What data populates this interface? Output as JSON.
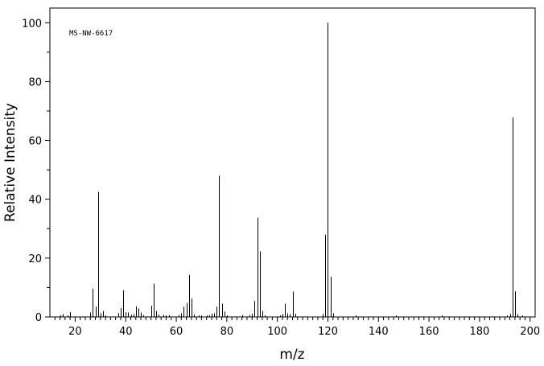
{
  "chart_data": {
    "type": "bar",
    "title": "",
    "annotation": "MS-NW-6617",
    "xlabel": "m/z",
    "ylabel": "Relative Intensity",
    "xlim": [
      10,
      202
    ],
    "ylim": [
      0,
      105
    ],
    "x_ticks": [
      20,
      40,
      60,
      80,
      100,
      120,
      140,
      160,
      180,
      200
    ],
    "y_ticks": [
      0,
      20,
      40,
      60,
      80,
      100
    ],
    "grid": false,
    "legend": "none",
    "bar_color": "#000000",
    "peaks": [
      {
        "x": 14,
        "y": 0.6
      },
      {
        "x": 15,
        "y": 1.0
      },
      {
        "x": 17,
        "y": 0.5
      },
      {
        "x": 18,
        "y": 1.6
      },
      {
        "x": 26,
        "y": 1.5
      },
      {
        "x": 27,
        "y": 9.6
      },
      {
        "x": 28,
        "y": 3.5
      },
      {
        "x": 29,
        "y": 42.5
      },
      {
        "x": 30,
        "y": 1.3
      },
      {
        "x": 31,
        "y": 2.0
      },
      {
        "x": 32,
        "y": 0.5
      },
      {
        "x": 37,
        "y": 1.3
      },
      {
        "x": 38,
        "y": 3.0
      },
      {
        "x": 39,
        "y": 9.1
      },
      {
        "x": 40,
        "y": 1.6
      },
      {
        "x": 41,
        "y": 1.5
      },
      {
        "x": 42,
        "y": 0.8
      },
      {
        "x": 43,
        "y": 1.0
      },
      {
        "x": 44,
        "y": 3.6
      },
      {
        "x": 45,
        "y": 2.9
      },
      {
        "x": 46,
        "y": 1.5
      },
      {
        "x": 47,
        "y": 0.6
      },
      {
        "x": 50,
        "y": 3.8
      },
      {
        "x": 51,
        "y": 11.3
      },
      {
        "x": 52,
        "y": 2.0
      },
      {
        "x": 53,
        "y": 0.8
      },
      {
        "x": 55,
        "y": 0.7
      },
      {
        "x": 56,
        "y": 0.5
      },
      {
        "x": 57,
        "y": 0.6
      },
      {
        "x": 61,
        "y": 0.6
      },
      {
        "x": 62,
        "y": 1.2
      },
      {
        "x": 63,
        "y": 3.5
      },
      {
        "x": 64,
        "y": 4.7
      },
      {
        "x": 65,
        "y": 14.3
      },
      {
        "x": 66,
        "y": 6.3
      },
      {
        "x": 67,
        "y": 0.8
      },
      {
        "x": 69,
        "y": 0.5
      },
      {
        "x": 70,
        "y": 0.5
      },
      {
        "x": 72,
        "y": 0.5
      },
      {
        "x": 73,
        "y": 0.6
      },
      {
        "x": 74,
        "y": 1.1
      },
      {
        "x": 75,
        "y": 1.2
      },
      {
        "x": 76,
        "y": 3.5
      },
      {
        "x": 77,
        "y": 48.0
      },
      {
        "x": 78,
        "y": 4.5
      },
      {
        "x": 79,
        "y": 1.8
      },
      {
        "x": 80,
        "y": 0.5
      },
      {
        "x": 86,
        "y": 0.6
      },
      {
        "x": 89,
        "y": 0.7
      },
      {
        "x": 90,
        "y": 1.1
      },
      {
        "x": 91,
        "y": 5.5
      },
      {
        "x": 92,
        "y": 33.7
      },
      {
        "x": 93,
        "y": 22.3
      },
      {
        "x": 94,
        "y": 2.0
      },
      {
        "x": 95,
        "y": 0.6
      },
      {
        "x": 101,
        "y": 0.5
      },
      {
        "x": 102,
        "y": 1.0
      },
      {
        "x": 103,
        "y": 4.5
      },
      {
        "x": 104,
        "y": 1.2
      },
      {
        "x": 105,
        "y": 1.0
      },
      {
        "x": 106,
        "y": 8.6
      },
      {
        "x": 107,
        "y": 1.1
      },
      {
        "x": 118,
        "y": 1.0
      },
      {
        "x": 119,
        "y": 28.0
      },
      {
        "x": 120,
        "y": 100.0
      },
      {
        "x": 121,
        "y": 13.7
      },
      {
        "x": 122,
        "y": 1.2
      },
      {
        "x": 131,
        "y": 0.5
      },
      {
        "x": 147,
        "y": 0.5
      },
      {
        "x": 165,
        "y": 0.5
      },
      {
        "x": 191,
        "y": 0.5
      },
      {
        "x": 192,
        "y": 1.0
      },
      {
        "x": 193,
        "y": 67.8
      },
      {
        "x": 194,
        "y": 8.7
      },
      {
        "x": 195,
        "y": 1.0
      },
      {
        "x": 197,
        "y": 0.5
      }
    ]
  }
}
